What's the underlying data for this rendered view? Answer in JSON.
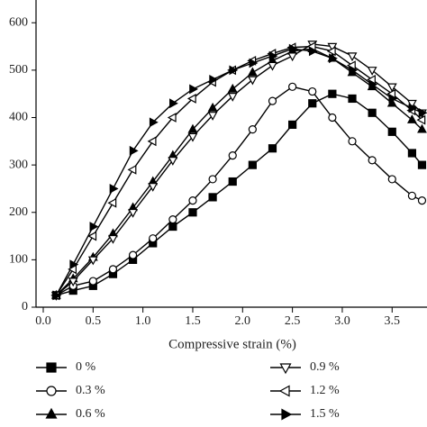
{
  "chart_data": {
    "type": "line",
    "x_label": "Compressive strain (%)",
    "x": [
      0.13,
      0.3,
      0.5,
      0.7,
      0.9,
      1.1,
      1.3,
      1.5,
      1.7,
      1.9,
      2.1,
      2.3,
      2.5,
      2.7,
      2.9,
      3.1,
      3.3,
      3.5,
      3.7,
      3.8
    ],
    "series": [
      {
        "name": "0 %",
        "color": "#000000",
        "marker": "square",
        "filled": true,
        "values": [
          25,
          35,
          45,
          70,
          100,
          135,
          170,
          200,
          232,
          265,
          300,
          335,
          385,
          430,
          450,
          440,
          410,
          370,
          325,
          300
        ]
      },
      {
        "name": "0.3 %",
        "color": "#000000",
        "marker": "circle",
        "filled": false,
        "values": [
          25,
          45,
          55,
          80,
          110,
          145,
          185,
          225,
          270,
          320,
          375,
          435,
          465,
          455,
          400,
          350,
          310,
          270,
          235,
          225
        ]
      },
      {
        "name": "0.6 %",
        "color": "#000000",
        "marker": "triangle-up",
        "filled": true,
        "values": [
          25,
          60,
          105,
          155,
          210,
          265,
          320,
          375,
          420,
          460,
          495,
          520,
          540,
          545,
          525,
          495,
          465,
          430,
          395,
          375
        ]
      },
      {
        "name": "0.9 %",
        "color": "#000000",
        "marker": "triangle-down",
        "filled": false,
        "values": [
          25,
          55,
          100,
          145,
          200,
          255,
          310,
          360,
          405,
          445,
          480,
          510,
          530,
          555,
          550,
          530,
          500,
          465,
          430,
          410
        ]
      },
      {
        "name": "1.2 %",
        "color": "#000000",
        "marker": "triangle-left",
        "filled": false,
        "values": [
          25,
          80,
          150,
          220,
          290,
          350,
          400,
          440,
          475,
          500,
          520,
          535,
          548,
          550,
          540,
          510,
          480,
          450,
          415,
          395
        ]
      },
      {
        "name": "1.5 %",
        "color": "#000000",
        "marker": "triangle-right",
        "filled": true,
        "values": [
          25,
          90,
          170,
          250,
          330,
          390,
          430,
          460,
          480,
          500,
          515,
          530,
          545,
          540,
          525,
          500,
          470,
          440,
          420,
          410
        ]
      }
    ],
    "xlim": [
      0,
      3.85
    ],
    "xticks": [
      {
        "value": 0,
        "label": "0.0"
      },
      0.5,
      {
        "value": 1,
        "label": "1.0"
      },
      1.5,
      {
        "value": 2,
        "label": "2.0"
      },
      2.5,
      {
        "value": 3,
        "label": "3.0"
      },
      3.5
    ],
    "ylim": [
      0,
      648
    ],
    "yticks": [
      0,
      100,
      200,
      300,
      400,
      500,
      600
    ],
    "grid": false
  }
}
